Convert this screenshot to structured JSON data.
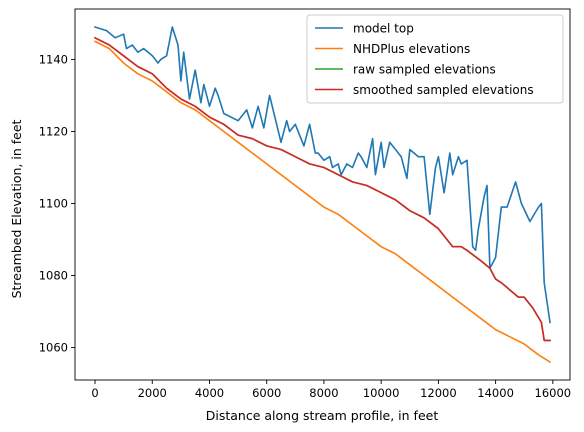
{
  "chart_data": {
    "type": "line",
    "title": "",
    "xlabel": "Distance along stream profile, in feet",
    "ylabel": "Streambed Elevation, in feet",
    "xlim": [
      -700,
      16600
    ],
    "ylim": [
      1051,
      1154
    ],
    "x_ticks": [
      0,
      2000,
      4000,
      6000,
      8000,
      10000,
      12000,
      14000,
      16000
    ],
    "y_ticks": [
      1060,
      1080,
      1100,
      1120,
      1140
    ],
    "grid": false,
    "legend_position": "top-right",
    "series": [
      {
        "name": "model top",
        "color": "#1f77b4",
        "x": [
          0,
          400,
          700,
          1000,
          1100,
          1300,
          1500,
          1700,
          2000,
          2200,
          2300,
          2500,
          2700,
          2900,
          3000,
          3100,
          3300,
          3500,
          3700,
          3800,
          4000,
          4200,
          4300,
          4500,
          5000,
          5300,
          5500,
          5700,
          5900,
          6100,
          6500,
          6700,
          6800,
          7000,
          7300,
          7500,
          7700,
          7800,
          8000,
          8200,
          8300,
          8500,
          8600,
          8800,
          9000,
          9200,
          9300,
          9500,
          9700,
          9800,
          10000,
          10100,
          10300,
          10500,
          10700,
          10900,
          11000,
          11300,
          11500,
          11700,
          11900,
          12000,
          12200,
          12400,
          12500,
          12700,
          12800,
          13000,
          13200,
          13300,
          13400,
          13600,
          13700,
          13800,
          14000,
          14200,
          14400,
          14700,
          14900,
          15200,
          15500,
          15600,
          15700,
          15900
        ],
        "y": [
          1149,
          1148,
          1146,
          1147,
          1143,
          1144,
          1142,
          1143,
          1141,
          1139,
          1140,
          1141,
          1149,
          1144,
          1134,
          1142,
          1129,
          1137,
          1128,
          1133,
          1127,
          1132,
          1130,
          1125,
          1123,
          1126,
          1121,
          1127,
          1121,
          1130,
          1117,
          1123,
          1120,
          1122,
          1116,
          1122,
          1114,
          1114,
          1112,
          1113,
          1110,
          1111,
          1108,
          1111,
          1110,
          1114,
          1113,
          1110,
          1118,
          1108,
          1117,
          1110,
          1117,
          1115,
          1113,
          1107,
          1115,
          1113,
          1113,
          1097,
          1110,
          1113,
          1103,
          1114,
          1108,
          1113,
          1111,
          1112,
          1088,
          1087,
          1093,
          1102,
          1105,
          1082,
          1085,
          1099,
          1099,
          1106,
          1100,
          1095,
          1099,
          1100,
          1078,
          1067
        ]
      },
      {
        "name": "NHDPlus elevations",
        "color": "#ff7f0e",
        "x": [
          0,
          500,
          1000,
          1500,
          2000,
          2500,
          3000,
          3500,
          4000,
          4500,
          5000,
          5500,
          6000,
          6500,
          7000,
          7500,
          8000,
          8500,
          9000,
          9500,
          10000,
          10500,
          11000,
          11500,
          12000,
          12500,
          13000,
          13500,
          14000,
          14500,
          15000,
          15500,
          15900
        ],
        "y": [
          1145,
          1143,
          1139,
          1136,
          1134,
          1131,
          1128,
          1126,
          1123,
          1120,
          1117,
          1114,
          1111,
          1108,
          1105,
          1102,
          1099,
          1097,
          1094,
          1091,
          1088,
          1086,
          1083,
          1080,
          1077,
          1074,
          1071,
          1068,
          1065,
          1063,
          1061,
          1058,
          1056
        ]
      },
      {
        "name": "raw sampled elevations",
        "color": "#2ca02c",
        "x": [
          0,
          500,
          1000,
          1500,
          2000,
          2500,
          3000,
          3500,
          4000,
          4500,
          5000,
          5500,
          6000,
          6500,
          7000,
          7500,
          8000,
          8500,
          9000,
          9500,
          10000,
          10500,
          11000,
          11500,
          12000,
          12200,
          12500,
          12800,
          13000,
          13500,
          13800,
          14000,
          14200,
          14500,
          14800,
          15000,
          15300,
          15600,
          15700,
          15900
        ],
        "y": [
          1146,
          1144,
          1141,
          1138,
          1136,
          1132,
          1129,
          1127,
          1124,
          1122,
          1119,
          1118,
          1116,
          1115,
          1113,
          1111,
          1110,
          1108,
          1106,
          1105,
          1103,
          1101,
          1098,
          1096,
          1093,
          1091,
          1088,
          1088,
          1087,
          1084,
          1082,
          1079,
          1078,
          1076,
          1074,
          1074,
          1071,
          1067,
          1062,
          1062
        ]
      },
      {
        "name": "smoothed sampled elevations",
        "color": "#d62728",
        "x": [
          0,
          500,
          1000,
          1500,
          2000,
          2500,
          3000,
          3500,
          4000,
          4500,
          5000,
          5500,
          6000,
          6500,
          7000,
          7500,
          8000,
          8500,
          9000,
          9500,
          10000,
          10500,
          11000,
          11500,
          12000,
          12200,
          12500,
          12800,
          13000,
          13500,
          13800,
          14000,
          14200,
          14500,
          14800,
          15000,
          15300,
          15600,
          15700,
          15900
        ],
        "y": [
          1146,
          1144,
          1141,
          1138,
          1136,
          1132,
          1129,
          1127,
          1124,
          1122,
          1119,
          1118,
          1116,
          1115,
          1113,
          1111,
          1110,
          1108,
          1106,
          1105,
          1103,
          1101,
          1098,
          1096,
          1093,
          1091,
          1088,
          1088,
          1087,
          1084,
          1082,
          1079,
          1078,
          1076,
          1074,
          1074,
          1071,
          1067,
          1062,
          1062
        ]
      }
    ]
  }
}
